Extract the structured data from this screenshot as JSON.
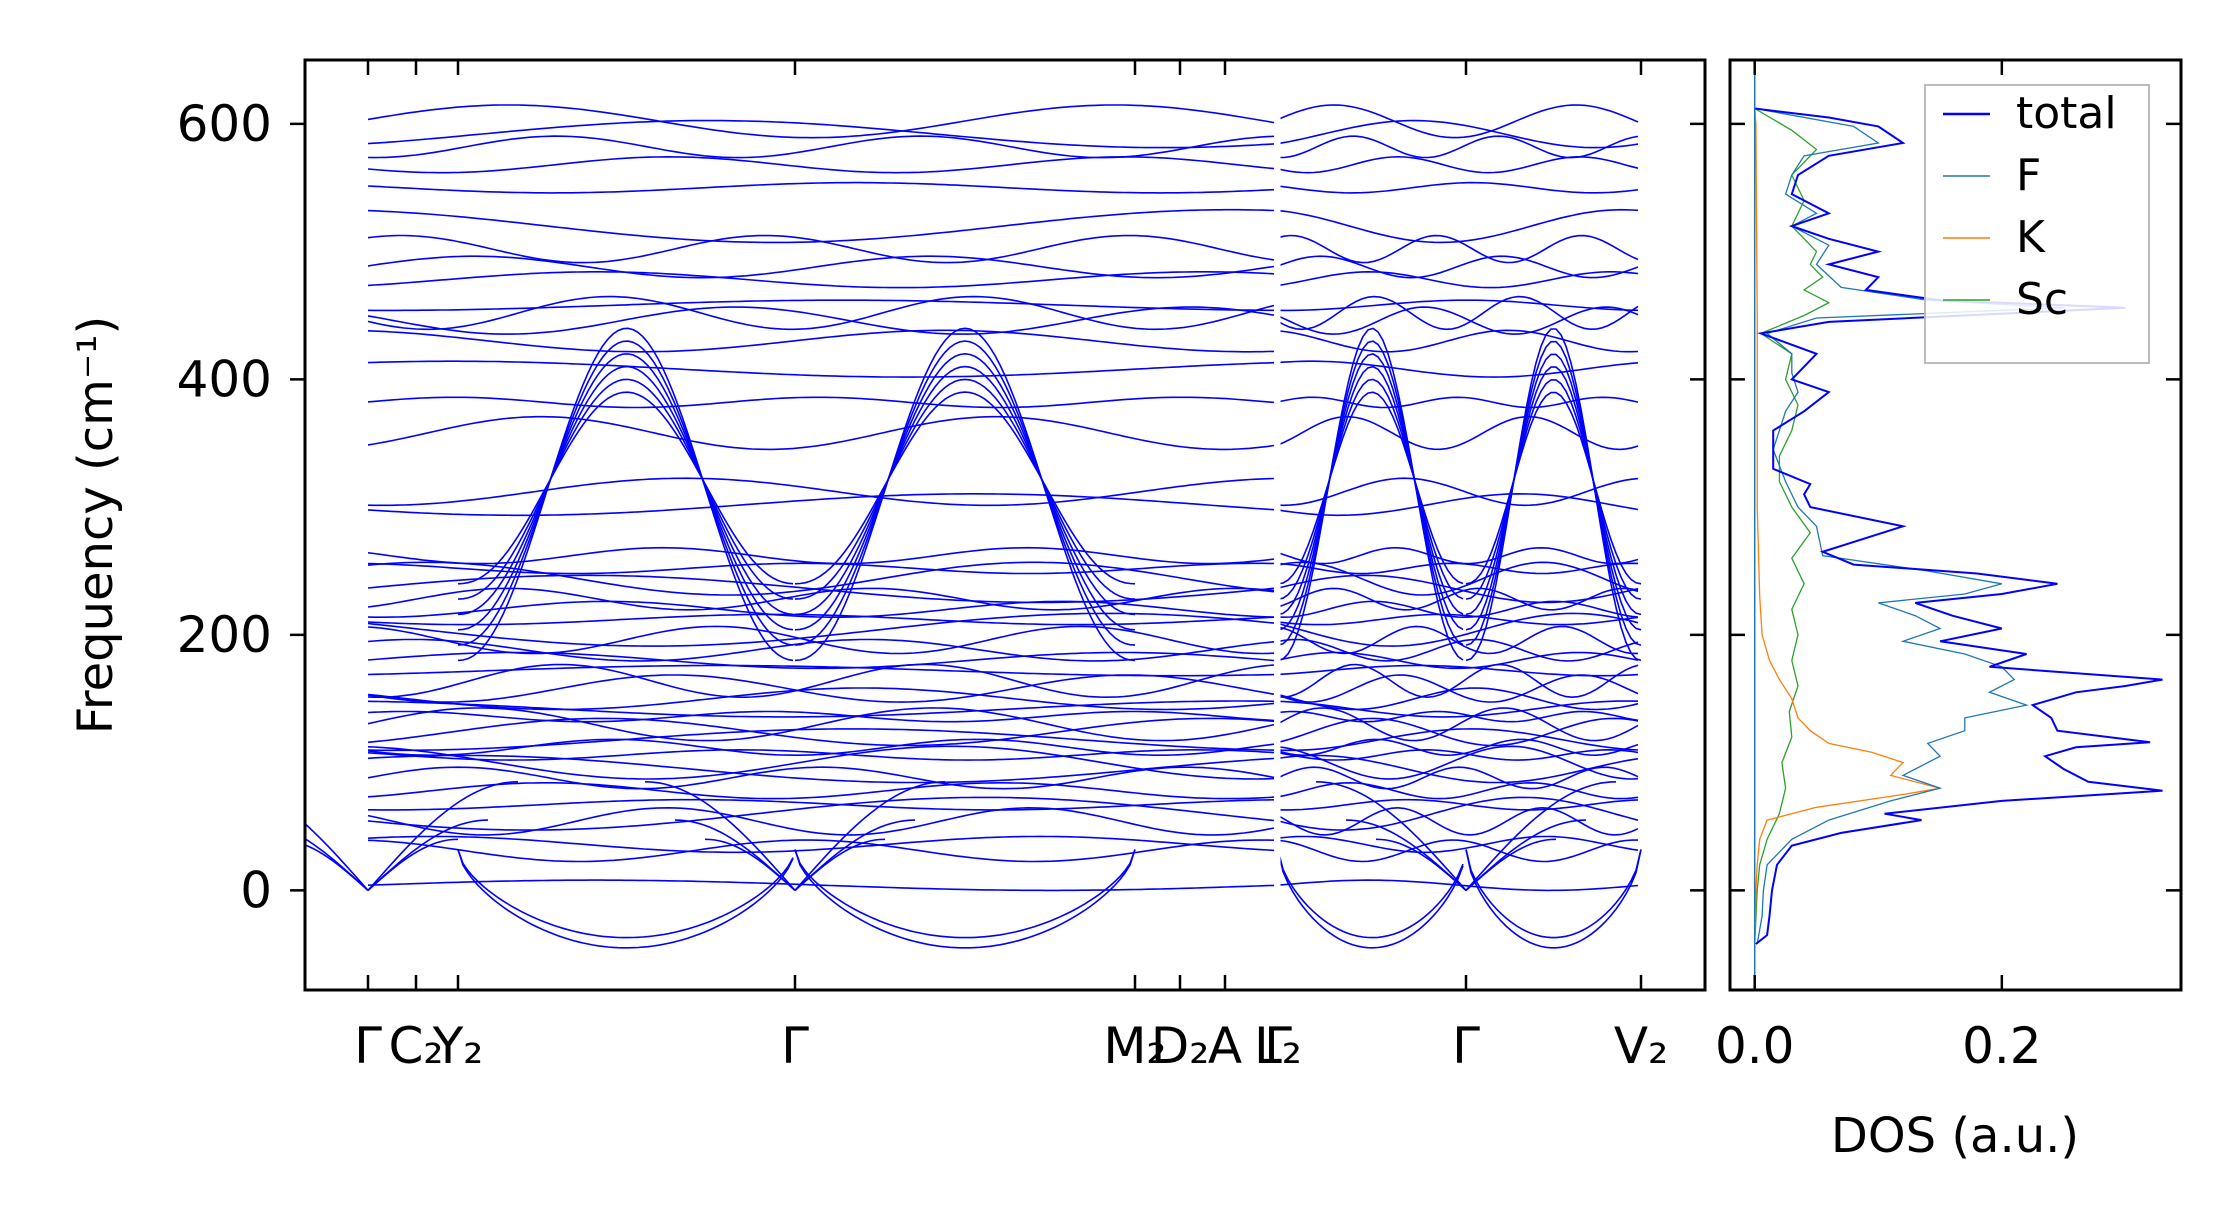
{
  "chart_data": [
    {
      "type": "line",
      "subtype": "phonon-band-structure",
      "ylabel": "Frequency (cm⁻¹)",
      "ylim": [
        -78,
        650
      ],
      "yticks": [
        0,
        200,
        400,
        600
      ],
      "yticklabels": [
        "0",
        "200",
        "400",
        "600"
      ],
      "xticklabels": [
        "Γ",
        "C₂",
        "Y₂",
        "Γ",
        "M₂",
        "D₂",
        "A",
        "Γ",
        "L₂",
        "Γ",
        "V₂"
      ],
      "kpath": [
        {
          "from": "Γ",
          "to": "C₂",
          "length": 0.35
        },
        {
          "from": "C₂",
          "to": "Y₂",
          "length": 0.3
        },
        {
          "from": "Y₂",
          "to": "Γ",
          "length": 2.65
        },
        {
          "from": "Γ",
          "to": "M₂",
          "length": 2.65
        },
        {
          "from": "M₂",
          "to": "D₂",
          "length": 0.35
        },
        {
          "from": "D₂",
          "to": "A",
          "length": 0.4
        },
        {
          "from": "A",
          "to": "Γ",
          "length": 0.4
        },
        {
          "from": "L₂",
          "to": "Γ",
          "length": 1.45
        },
        {
          "from": "Γ",
          "to": "V₂",
          "length": 1.35
        }
      ],
      "flat_bands": [
        4,
        36,
        31,
        54,
        60,
        67,
        78,
        88,
        95,
        100,
        106,
        112,
        118,
        124,
        130,
        136,
        142,
        150,
        158,
        164,
        172,
        180,
        188,
        196,
        204,
        212,
        220,
        228,
        236,
        244,
        252,
        262,
        302,
        312,
        358,
        382,
        408,
        430,
        446,
        452,
        458,
        478,
        488,
        502,
        520,
        550,
        568,
        582,
        592,
        602
      ],
      "min_frequency": -45,
      "max_frequency": 618,
      "line_color": "#0000ff"
    },
    {
      "type": "line",
      "subtype": "density-of-states",
      "xlabel": "DOS (a.u.)",
      "xlim": [
        -0.02,
        0.345
      ],
      "xticks": [
        0.0,
        0.2
      ],
      "xticklabels": [
        "0.0",
        "0.2"
      ],
      "ylim": [
        -78,
        650
      ],
      "legend_position": "top-right",
      "series": [
        {
          "name": "total",
          "color": "#0000ff",
          "points": [
            [
              -42,
              0.001
            ],
            [
              -35,
              0.01
            ],
            [
              -20,
              0.012
            ],
            [
              0,
              0.014
            ],
            [
              20,
              0.018
            ],
            [
              35,
              0.03
            ],
            [
              45,
              0.07
            ],
            [
              55,
              0.135
            ],
            [
              60,
              0.105
            ],
            [
              70,
              0.2
            ],
            [
              78,
              0.33
            ],
            [
              85,
              0.27
            ],
            [
              95,
              0.25
            ],
            [
              105,
              0.235
            ],
            [
              112,
              0.26
            ],
            [
              116,
              0.32
            ],
            [
              125,
              0.245
            ],
            [
              135,
              0.24
            ],
            [
              145,
              0.225
            ],
            [
              155,
              0.26
            ],
            [
              160,
              0.3
            ],
            [
              165,
              0.33
            ],
            [
              175,
              0.19
            ],
            [
              185,
              0.22
            ],
            [
              195,
              0.15
            ],
            [
              205,
              0.2
            ],
            [
              215,
              0.16
            ],
            [
              225,
              0.13
            ],
            [
              232,
              0.2
            ],
            [
              240,
              0.245
            ],
            [
              248,
              0.18
            ],
            [
              255,
              0.08
            ],
            [
              265,
              0.055
            ],
            [
              285,
              0.12
            ],
            [
              300,
              0.045
            ],
            [
              310,
              0.04
            ],
            [
              318,
              0.045
            ],
            [
              330,
              0.015
            ],
            [
              360,
              0.015
            ],
            [
              375,
              0.04
            ],
            [
              390,
              0.06
            ],
            [
              400,
              0.03
            ],
            [
              420,
              0.05
            ],
            [
              436,
              0.005
            ],
            [
              445,
              0.06
            ],
            [
              456,
              0.3
            ],
            [
              462,
              0.15
            ],
            [
              470,
              0.09
            ],
            [
              480,
              0.1
            ],
            [
              490,
              0.06
            ],
            [
              500,
              0.1
            ],
            [
              510,
              0.06
            ],
            [
              520,
              0.03
            ],
            [
              530,
              0.06
            ],
            [
              545,
              0.03
            ],
            [
              560,
              0.035
            ],
            [
              575,
              0.06
            ],
            [
              585,
              0.12
            ],
            [
              598,
              0.1
            ],
            [
              605,
              0.06
            ],
            [
              612,
              0.0
            ]
          ]
        },
        {
          "name": "F",
          "color": "#1f77b4",
          "points": [
            [
              -42,
              0.002
            ],
            [
              -20,
              0.006
            ],
            [
              0,
              0.007
            ],
            [
              20,
              0.01
            ],
            [
              40,
              0.03
            ],
            [
              55,
              0.06
            ],
            [
              70,
              0.11
            ],
            [
              80,
              0.15
            ],
            [
              90,
              0.12
            ],
            [
              105,
              0.15
            ],
            [
              115,
              0.14
            ],
            [
              125,
              0.17
            ],
            [
              135,
              0.17
            ],
            [
              145,
              0.22
            ],
            [
              155,
              0.19
            ],
            [
              165,
              0.21
            ],
            [
              175,
              0.2
            ],
            [
              185,
              0.17
            ],
            [
              195,
              0.12
            ],
            [
              205,
              0.15
            ],
            [
              215,
              0.13
            ],
            [
              225,
              0.1
            ],
            [
              232,
              0.17
            ],
            [
              240,
              0.2
            ],
            [
              250,
              0.14
            ],
            [
              262,
              0.055
            ],
            [
              285,
              0.05
            ],
            [
              300,
              0.035
            ],
            [
              320,
              0.025
            ],
            [
              345,
              0.015
            ],
            [
              375,
              0.025
            ],
            [
              390,
              0.035
            ],
            [
              405,
              0.03
            ],
            [
              420,
              0.03
            ],
            [
              436,
              0.01
            ],
            [
              448,
              0.05
            ],
            [
              456,
              0.25
            ],
            [
              462,
              0.14
            ],
            [
              472,
              0.07
            ],
            [
              490,
              0.05
            ],
            [
              505,
              0.06
            ],
            [
              520,
              0.03
            ],
            [
              530,
              0.05
            ],
            [
              545,
              0.025
            ],
            [
              560,
              0.03
            ],
            [
              575,
              0.04
            ],
            [
              585,
              0.1
            ],
            [
              598,
              0.08
            ],
            [
              612,
              0.0
            ]
          ]
        },
        {
          "name": "K",
          "color": "#ff7f0e",
          "points": [
            [
              -42,
              0.0
            ],
            [
              0,
              0.001
            ],
            [
              20,
              0.002
            ],
            [
              40,
              0.004
            ],
            [
              55,
              0.01
            ],
            [
              65,
              0.05
            ],
            [
              75,
              0.12
            ],
            [
              80,
              0.15
            ],
            [
              90,
              0.11
            ],
            [
              100,
              0.12
            ],
            [
              108,
              0.095
            ],
            [
              115,
              0.06
            ],
            [
              125,
              0.045
            ],
            [
              135,
              0.035
            ],
            [
              150,
              0.03
            ],
            [
              165,
              0.02
            ],
            [
              180,
              0.012
            ],
            [
              200,
              0.006
            ],
            [
              230,
              0.004
            ],
            [
              300,
              0.002
            ],
            [
              450,
              0.002
            ],
            [
              600,
              0.001
            ],
            [
              612,
              0.0
            ]
          ]
        },
        {
          "name": "Sc",
          "color": "#2ca02c",
          "points": [
            [
              -42,
              0.0
            ],
            [
              0,
              0.002
            ],
            [
              20,
              0.004
            ],
            [
              40,
              0.01
            ],
            [
              60,
              0.02
            ],
            [
              80,
              0.025
            ],
            [
              100,
              0.022
            ],
            [
              120,
              0.03
            ],
            [
              140,
              0.028
            ],
            [
              160,
              0.035
            ],
            [
              180,
              0.03
            ],
            [
              200,
              0.035
            ],
            [
              220,
              0.03
            ],
            [
              240,
              0.04
            ],
            [
              260,
              0.03
            ],
            [
              280,
              0.045
            ],
            [
              300,
              0.03
            ],
            [
              320,
              0.02
            ],
            [
              340,
              0.02
            ],
            [
              360,
              0.03
            ],
            [
              380,
              0.035
            ],
            [
              400,
              0.025
            ],
            [
              420,
              0.03
            ],
            [
              436,
              0.005
            ],
            [
              450,
              0.04
            ],
            [
              460,
              0.06
            ],
            [
              470,
              0.04
            ],
            [
              480,
              0.055
            ],
            [
              490,
              0.045
            ],
            [
              500,
              0.05
            ],
            [
              520,
              0.03
            ],
            [
              540,
              0.04
            ],
            [
              560,
              0.03
            ],
            [
              580,
              0.05
            ],
            [
              595,
              0.03
            ],
            [
              612,
              0.0
            ]
          ]
        }
      ]
    }
  ]
}
